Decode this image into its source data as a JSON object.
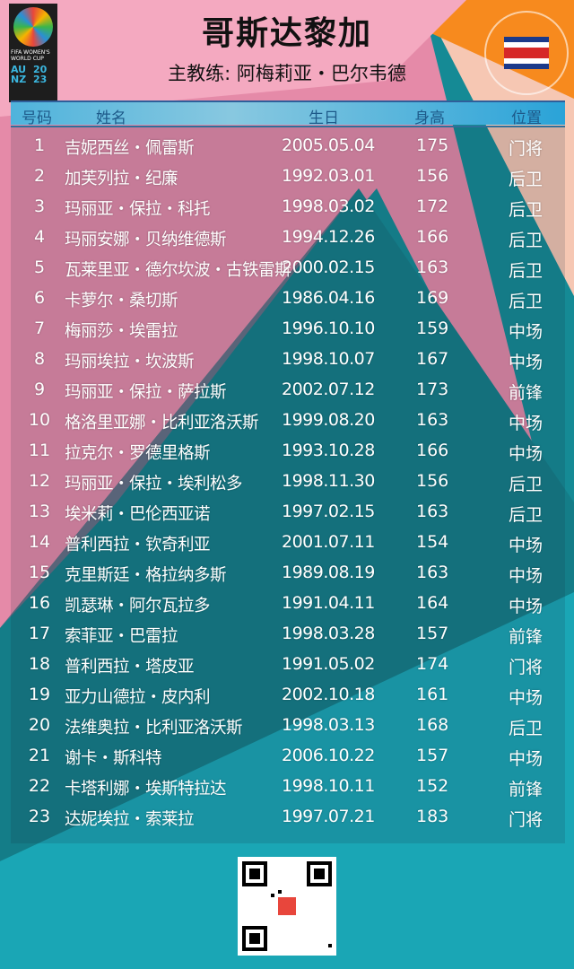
{
  "header": {
    "title": "哥斯达黎加",
    "coach": "主教练: 阿梅莉亚・巴尔韦德"
  },
  "logo": {
    "text": "FIFA WOMEN'S WORLD CUP",
    "codes": [
      "AU",
      "20",
      "NZ",
      "23"
    ]
  },
  "flag_icon": "costa-rica-flag",
  "colors": {
    "pink": "#f4a9c0",
    "orange": "#f78a1e",
    "teal": "#158a95",
    "header_bar": "#4fb3dc"
  },
  "table": {
    "columns": [
      "号码",
      "姓名",
      "生日",
      "身高",
      "位置"
    ],
    "rows": [
      [
        "1",
        "吉妮西丝・佩雷斯",
        "2005.05.04",
        "175",
        "门将"
      ],
      [
        "2",
        "加芙列拉・纪廉",
        "1992.03.01",
        "156",
        "后卫"
      ],
      [
        "3",
        "玛丽亚・保拉・科托",
        "1998.03.02",
        "172",
        "后卫"
      ],
      [
        "4",
        "玛丽安娜・贝纳维德斯",
        "1994.12.26",
        "166",
        "后卫"
      ],
      [
        "5",
        "瓦莱里亚・德尔坎波・古铁雷斯",
        "2000.02.15",
        "163",
        "后卫"
      ],
      [
        "6",
        "卡萝尔・桑切斯",
        "1986.04.16",
        "169",
        "后卫"
      ],
      [
        "7",
        "梅丽莎・埃雷拉",
        "1996.10.10",
        "159",
        "中场"
      ],
      [
        "8",
        "玛丽埃拉・坎波斯",
        "1998.10.07",
        "167",
        "中场"
      ],
      [
        "9",
        "玛丽亚・保拉・萨拉斯",
        "2002.07.12",
        "173",
        "前锋"
      ],
      [
        "10",
        "格洛里亚娜・比利亚洛沃斯",
        "1999.08.20",
        "163",
        "中场"
      ],
      [
        "11",
        "拉克尔・罗德里格斯",
        "1993.10.28",
        "166",
        "中场"
      ],
      [
        "12",
        "玛丽亚・保拉・埃利松多",
        "1998.11.30",
        "156",
        "后卫"
      ],
      [
        "13",
        "埃米莉・巴伦西亚诺",
        "1997.02.15",
        "163",
        "后卫"
      ],
      [
        "14",
        "普利西拉・钦奇利亚",
        "2001.07.11",
        "154",
        "中场"
      ],
      [
        "15",
        "克里斯廷・格拉纳多斯",
        "1989.08.19",
        "163",
        "中场"
      ],
      [
        "16",
        "凯瑟琳・阿尔瓦拉多",
        "1991.04.11",
        "164",
        "中场"
      ],
      [
        "17",
        "索菲亚・巴雷拉",
        "1998.03.28",
        "157",
        "前锋"
      ],
      [
        "18",
        "普利西拉・塔皮亚",
        "1991.05.02",
        "174",
        "门将"
      ],
      [
        "19",
        "亚力山德拉・皮内利",
        "2002.10.18",
        "161",
        "中场"
      ],
      [
        "20",
        "法维奥拉・比利亚洛沃斯",
        "1998.03.13",
        "168",
        "后卫"
      ],
      [
        "21",
        "谢卡・斯科特",
        "2006.10.22",
        "157",
        "中场"
      ],
      [
        "22",
        "卡塔利娜・埃斯特拉达",
        "1998.10.11",
        "152",
        "前锋"
      ],
      [
        "23",
        "达妮埃拉・索莱拉",
        "1997.07.21",
        "183",
        "门将"
      ]
    ]
  }
}
